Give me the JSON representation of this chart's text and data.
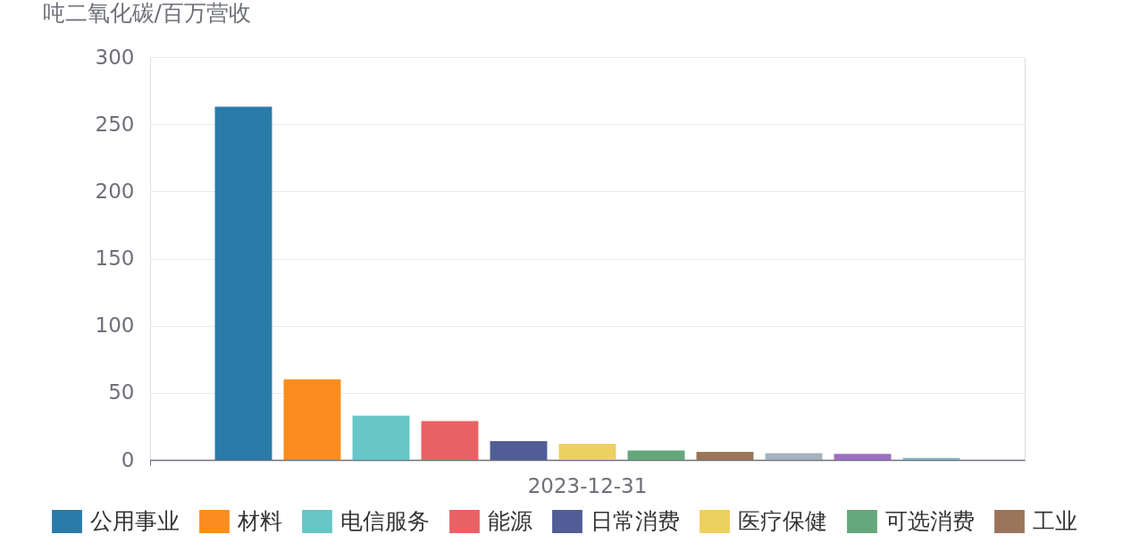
{
  "chart_data": {
    "type": "bar",
    "ylabel": "吨二氧化碳/百万营收",
    "categories": [
      "2023-12-31"
    ],
    "ylim": [
      0,
      300
    ],
    "yticks": [
      0,
      50,
      100,
      150,
      200,
      250,
      300
    ],
    "grid": "y",
    "legend": "bottom",
    "series": [
      {
        "name": "公用事业",
        "color": "#2b7ba8",
        "values": [
          263
        ]
      },
      {
        "name": "材料",
        "color": "#fb8c1f",
        "values": [
          60
        ]
      },
      {
        "name": "电信服务",
        "color": "#67c6c6",
        "values": [
          33
        ]
      },
      {
        "name": "能源",
        "color": "#e86265",
        "values": [
          29
        ]
      },
      {
        "name": "日常消费",
        "color": "#505d96",
        "values": [
          14
        ]
      },
      {
        "name": "医疗保健",
        "color": "#ecd060",
        "values": [
          12
        ]
      },
      {
        "name": "可选消费",
        "color": "#65a77a",
        "values": [
          7
        ]
      },
      {
        "name": "工业",
        "color": "#9a7559",
        "values": [
          6
        ]
      },
      {
        "color": "#a5b1bd",
        "values": [
          5
        ]
      },
      {
        "color": "#9d6fc0",
        "values": [
          4.5
        ]
      },
      {
        "color": "#86b4cc",
        "values": [
          1.5
        ]
      }
    ]
  }
}
